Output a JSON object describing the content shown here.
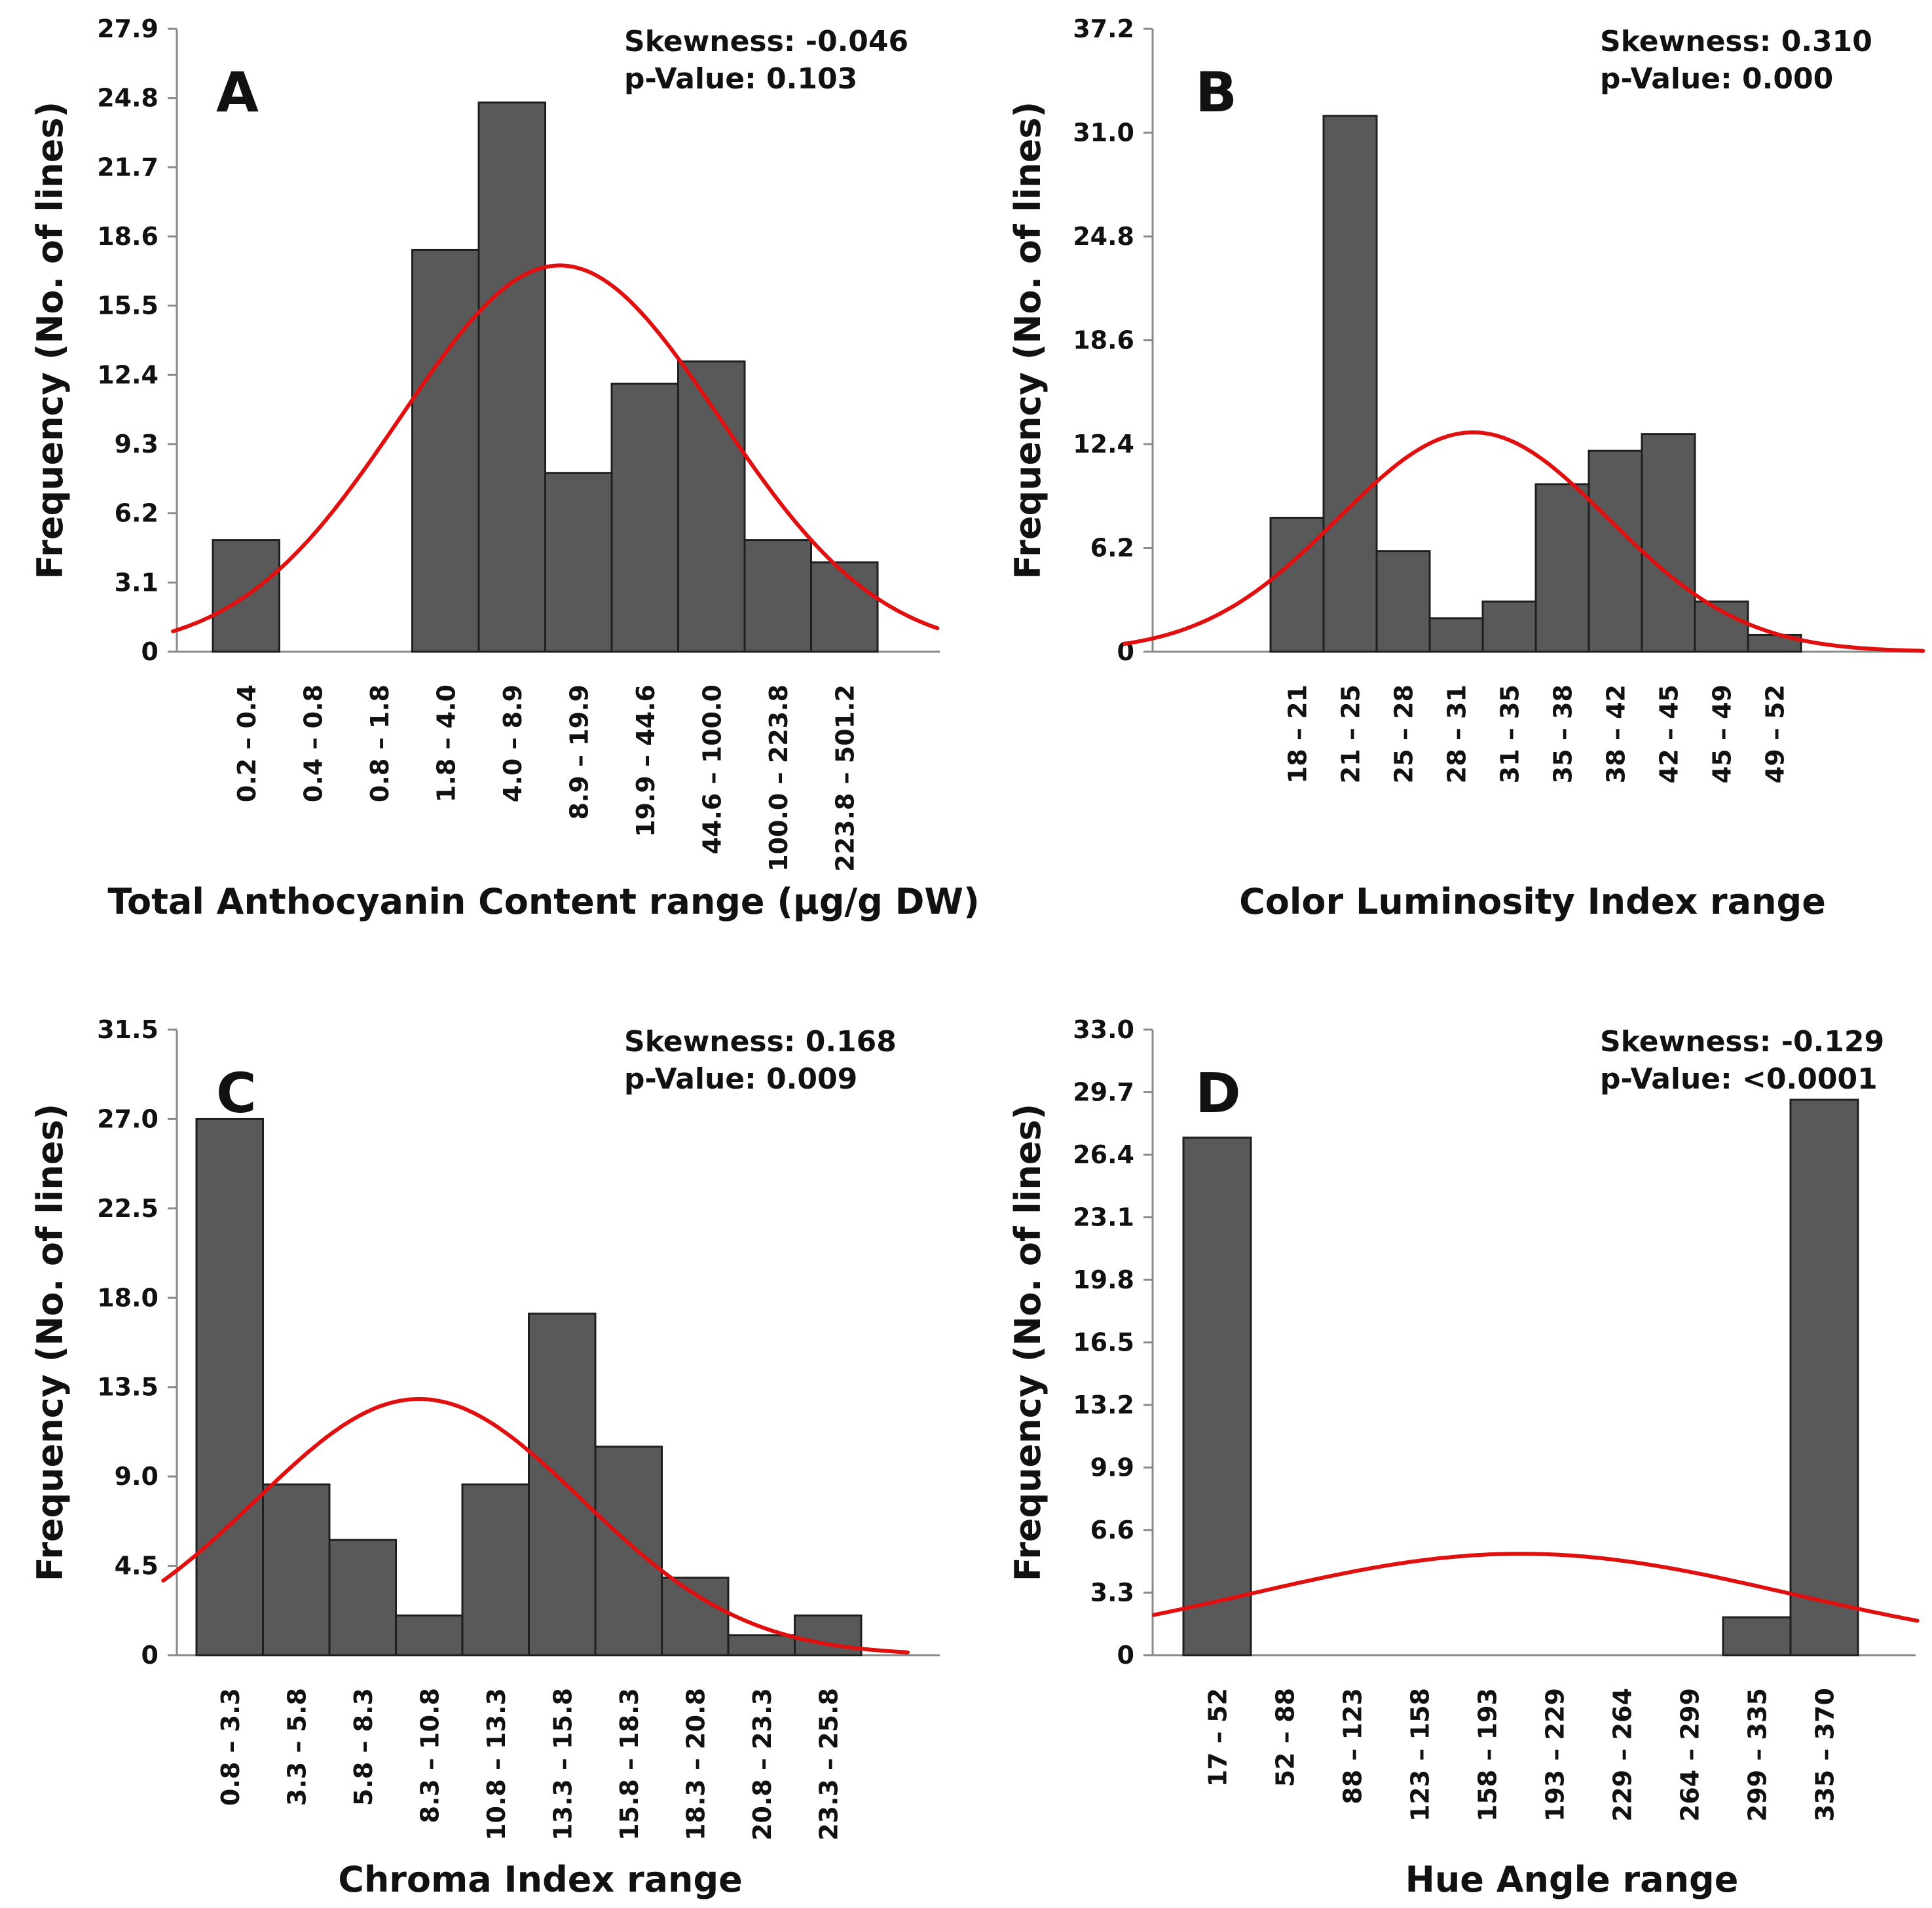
{
  "colors": {
    "bar": "#595959",
    "bar_edge": "#1f1f1f",
    "curve": "#e01010",
    "axis": "#8a8a8a"
  },
  "chart_data": [
    {
      "panel": "A",
      "type": "bar",
      "xlabel": "Total Anthocyanin Content range (µg/g DW)",
      "ylabel": "Frequency (No. of lines)",
      "ylim": [
        0,
        27.9
      ],
      "yticks": [
        "0",
        "3.1",
        "6.2",
        "9.3",
        "12.4",
        "15.5",
        "18.6",
        "21.7",
        "24.8",
        "27.9"
      ],
      "categories": [
        "0.2 – 0.4",
        "0.4 – 0.8",
        "0.8 – 1.8",
        "1.8 – 4.0",
        "4.0 – 8.9",
        "8.9 – 19.9",
        "19.9 – 44.6",
        "44.6 – 100.0",
        "100.0 – 223.8",
        "223.8 – 501.2"
      ],
      "values": [
        5,
        0,
        0,
        18,
        24.6,
        8,
        12,
        13,
        5,
        4
      ],
      "normal_curve": {
        "peak": 17.3,
        "peak_at_bin": 5.22,
        "sigma_bins": 2.4,
        "x_range_bins": [
          -0.6,
          10.9
        ]
      },
      "skewness_label": "Skewness: -0.046",
      "pvalue_label": "p-Value: 0.103"
    },
    {
      "panel": "B",
      "type": "bar",
      "xlabel": "Color Luminosity Index range",
      "ylabel": "Frequency (No. of lines)",
      "ylim": [
        0,
        37.2
      ],
      "yticks": [
        "0",
        "6.2",
        "12.4",
        "18.6",
        "24.8",
        "31.0",
        "37.2"
      ],
      "categories": [
        "18 – 21",
        "21 – 25",
        "25 – 28",
        "28 – 31",
        "31 – 35",
        "35 – 38",
        "38 – 42",
        "42 – 45",
        "45 – 49",
        "49 – 52"
      ],
      "values": [
        8,
        32,
        6,
        2,
        3,
        10,
        12,
        13,
        3,
        1
      ],
      "normal_curve": {
        "peak": 13.1,
        "peak_at_bin": 3.82,
        "sigma_bins": 2.55,
        "x_range_bins": [
          -2.75,
          12.3
        ]
      },
      "skewness_label": "Skewness: 0.310",
      "pvalue_label": "p-Value: 0.000"
    },
    {
      "panel": "C",
      "type": "bar",
      "xlabel": "Chroma Index range",
      "ylabel": "Frequency (No. of lines)",
      "ylim": [
        0,
        31.5
      ],
      "yticks": [
        "0",
        "4.5",
        "9.0",
        "13.5",
        "18.0",
        "22.5",
        "27.0",
        "31.5"
      ],
      "categories": [
        "0.8 – 3.3",
        "3.3 – 5.8",
        "5.8 – 8.3",
        "8.3 – 10.8",
        "10.8 – 13.3",
        "13.3 – 15.8",
        "15.8 – 18.3",
        "18.3 – 20.8",
        "20.8 – 23.3",
        "23.3 – 25.8"
      ],
      "values": [
        27,
        8.6,
        5.8,
        2,
        8.6,
        17.2,
        10.5,
        3.9,
        1,
        2
      ],
      "normal_curve": {
        "peak": 12.9,
        "peak_at_bin": 3.35,
        "sigma_bins": 2.45,
        "x_range_bins": [
          -0.5,
          10.7
        ]
      },
      "skewness_label": "Skewness: 0.168",
      "pvalue_label": "p-Value: 0.009"
    },
    {
      "panel": "D",
      "type": "bar",
      "xlabel": "Hue Angle range",
      "ylabel": "Frequency (No. of lines)",
      "ylim": [
        0,
        33.0
      ],
      "yticks": [
        "0",
        "3.3",
        "6.6",
        "9.9",
        "13.2",
        "16.5",
        "19.8",
        "23.1",
        "26.4",
        "29.7",
        "33.0"
      ],
      "categories": [
        "17 – 52",
        "52 – 88",
        "88 – 123",
        "123 – 158",
        "158 – 193",
        "193 – 229",
        "229 – 264",
        "264 – 299",
        "299 – 335",
        "335 – 370"
      ],
      "values": [
        27.3,
        0,
        0,
        0,
        0,
        0,
        0,
        0,
        2,
        29.3
      ],
      "normal_curve": {
        "peak": 5.35,
        "peak_at_bin": 5.0,
        "sigma_bins": 4.0,
        "x_range_bins": [
          -0.44,
          10.88
        ]
      },
      "skewness_label": "Skewness: -0.129",
      "pvalue_label": "p-Value: <0.0001"
    }
  ]
}
